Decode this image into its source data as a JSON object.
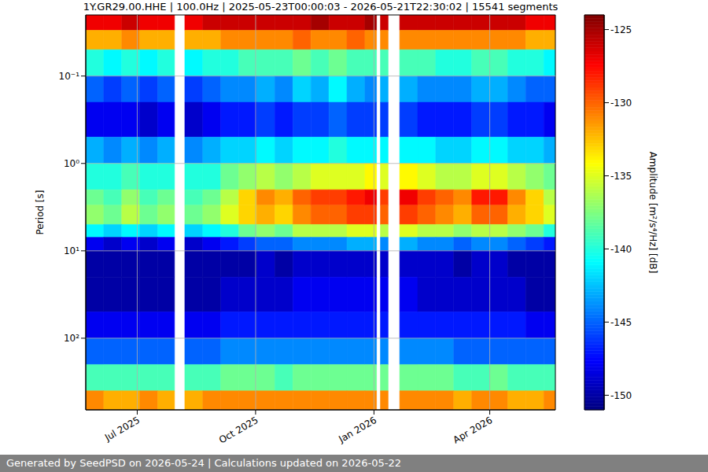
{
  "chart_data": {
    "type": "heatmap",
    "title": "1Y.GR29.00.HHE | 100.0Hz | 2025-05-23T00:00:03 - 2026-05-21T22:30:02 | 15541 segments",
    "y_label": "Period [s]",
    "footer": "Generated by SeedPSD on 2026-05-24 | Calculations updated on 2026-05-22",
    "log": "y",
    "grid": true,
    "xlim": [
      "2025-05-22",
      "2026-05-22"
    ],
    "xticks": [
      {
        "value": "2025-07-01",
        "label": "Jul 2025"
      },
      {
        "value": "2025-10-01",
        "label": "Oct 2025"
      },
      {
        "value": "2026-01-01",
        "label": "Jan 2026"
      },
      {
        "value": "2026-04-01",
        "label": "Apr 2026"
      }
    ],
    "ylim": [
      0.02,
      660
    ],
    "yticks": [
      {
        "value": 0.1,
        "label": "10⁻¹"
      },
      {
        "value": 1,
        "label": "10⁰"
      },
      {
        "value": 10,
        "label": "10¹"
      },
      {
        "value": 100,
        "label": "10²"
      }
    ],
    "colorbar": {
      "label": "Amplitude [m²/s⁴/Hz] [dB]",
      "range": [
        -151,
        -124
      ],
      "ticks": [
        -150,
        -145,
        -140,
        -135,
        -130,
        -125
      ]
    },
    "x_edges": [
      "2025-05-22",
      "2025-06-05",
      "2025-06-19",
      "2025-07-03",
      "2025-07-17",
      "2025-07-30",
      "2025-08-07",
      "2025-08-21",
      "2025-09-04",
      "2025-09-18",
      "2025-10-02",
      "2025-10-16",
      "2025-10-30",
      "2025-11-13",
      "2025-11-27",
      "2025-12-11",
      "2025-12-25",
      "2026-01-03",
      "2026-01-06",
      "2026-01-12",
      "2026-01-21",
      "2026-02-04",
      "2026-02-18",
      "2026-03-04",
      "2026-03-18",
      "2026-04-01",
      "2026-04-15",
      "2026-04-29",
      "2026-05-13",
      "2026-05-22"
    ],
    "y_edges": [
      0.02,
      0.03,
      0.05,
      0.1,
      0.2,
      0.5,
      1,
      2,
      3,
      5,
      7,
      10,
      20,
      50,
      100,
      200,
      400,
      660
    ],
    "z": [
      [
        -127,
        -127,
        -126,
        -127,
        -127,
        null,
        -127,
        -126,
        -126,
        -126,
        -126,
        -126,
        -126,
        -125,
        -126,
        -126,
        -125,
        null,
        -126,
        null,
        -126,
        -126,
        -126,
        -126,
        -126,
        -126,
        -126,
        -127,
        -127
      ],
      [
        -132,
        -132,
        -131,
        -132,
        -132,
        null,
        -132,
        -132,
        -131,
        -131,
        -131,
        -131,
        -130,
        -131,
        -131,
        -130,
        -131,
        null,
        -131,
        null,
        -131,
        -131,
        -131,
        -131,
        -131,
        -131,
        -131,
        -132,
        -132
      ],
      [
        -140,
        -141,
        -140,
        -141,
        -140,
        null,
        -141,
        -140,
        -140,
        -139,
        -139,
        -139,
        -138,
        -139,
        -138,
        -139,
        -139,
        null,
        -139,
        null,
        -139,
        -139,
        -140,
        -140,
        -139,
        -139,
        -140,
        -140,
        -141
      ],
      [
        -145,
        -146,
        -145,
        -146,
        -145,
        null,
        -146,
        -145,
        -144,
        -144,
        -143,
        -144,
        -142,
        -143,
        -141,
        -143,
        -144,
        null,
        -143,
        null,
        -143,
        -144,
        -144,
        -144,
        -143,
        -143,
        -144,
        -145,
        -145
      ],
      [
        -148,
        -148,
        -148,
        -149,
        -148,
        null,
        -149,
        -148,
        -147,
        -147,
        -146,
        -147,
        -146,
        -146,
        -145,
        -146,
        -146,
        null,
        -146,
        null,
        -146,
        -147,
        -147,
        -147,
        -146,
        -146,
        -147,
        -147,
        -148
      ],
      [
        -143,
        -144,
        -143,
        -144,
        -143,
        null,
        -144,
        -143,
        -142,
        -142,
        -141,
        -142,
        -141,
        -141,
        -140,
        -141,
        -141,
        null,
        -141,
        null,
        -141,
        -141,
        -142,
        -142,
        -141,
        -141,
        -142,
        -142,
        -143
      ],
      [
        -140,
        -140,
        -139,
        -140,
        -140,
        null,
        -140,
        -140,
        -138,
        -137,
        -136,
        -137,
        -136,
        -135,
        -135,
        -135,
        -134,
        null,
        -135,
        null,
        -134,
        -135,
        -136,
        -136,
        -135,
        -135,
        -136,
        -137,
        -138
      ],
      [
        -138,
        -139,
        -137,
        -139,
        -138,
        null,
        -139,
        -138,
        -136,
        -133,
        -131,
        -132,
        -130,
        -129,
        -129,
        -128,
        -127,
        null,
        -129,
        null,
        -127,
        -129,
        -130,
        -131,
        -128,
        -128,
        -131,
        -133,
        -136
      ],
      [
        -137,
        -138,
        -136,
        -138,
        -137,
        null,
        -138,
        -137,
        -135,
        -133,
        -132,
        -133,
        -131,
        -130,
        -130,
        -129,
        -129,
        null,
        -130,
        null,
        -129,
        -130,
        -131,
        -132,
        -130,
        -130,
        -132,
        -133,
        -135
      ],
      [
        -141,
        -142,
        -141,
        -142,
        -141,
        null,
        -142,
        -141,
        -140,
        -138,
        -137,
        -138,
        -136,
        -136,
        -136,
        -135,
        -135,
        null,
        -136,
        null,
        -135,
        -136,
        -136,
        -137,
        -136,
        -136,
        -137,
        -138,
        -140
      ],
      [
        -148,
        -149,
        -148,
        -149,
        -148,
        null,
        -149,
        -148,
        -147,
        -146,
        -145,
        -145,
        -144,
        -144,
        -144,
        -143,
        -143,
        null,
        -144,
        null,
        -143,
        -144,
        -144,
        -145,
        -144,
        -144,
        -145,
        -146,
        -147
      ],
      [
        -150,
        -150,
        -150,
        -150,
        -150,
        null,
        -150,
        -150,
        -150,
        -150,
        -149,
        -150,
        -149,
        -149,
        -149,
        -149,
        -149,
        null,
        -149,
        null,
        -149,
        -149,
        -149,
        -150,
        -149,
        -149,
        -150,
        -150,
        -150
      ],
      [
        -150,
        -150,
        -150,
        -150,
        -150,
        null,
        -150,
        -150,
        -149,
        -149,
        -149,
        -149,
        -148,
        -148,
        -148,
        -148,
        -148,
        null,
        -148,
        null,
        -148,
        -149,
        -149,
        -149,
        -149,
        -149,
        -149,
        -150,
        -150
      ],
      [
        -148,
        -148,
        -148,
        -148,
        -148,
        null,
        -148,
        -148,
        -147,
        -147,
        -147,
        -147,
        -147,
        -147,
        -147,
        -147,
        -147,
        null,
        -147,
        null,
        -147,
        -147,
        -147,
        -147,
        -147,
        -147,
        -147,
        -148,
        -148
      ],
      [
        -145,
        -145,
        -145,
        -145,
        -145,
        null,
        -145,
        -145,
        -144,
        -144,
        -144,
        -144,
        -144,
        -144,
        -144,
        -144,
        -144,
        null,
        -144,
        null,
        -144,
        -144,
        -144,
        -145,
        -145,
        -145,
        -145,
        -145,
        -145
      ],
      [
        -139,
        -139,
        -139,
        -139,
        -139,
        null,
        -139,
        -139,
        -138,
        -138,
        -138,
        -139,
        -138,
        -138,
        -138,
        -138,
        -138,
        null,
        -138,
        null,
        -138,
        -138,
        -138,
        -139,
        -139,
        -138,
        -139,
        -139,
        -139
      ],
      [
        -131,
        -132,
        -132,
        -131,
        -132,
        null,
        -132,
        -131,
        -131,
        -131,
        -131,
        -131,
        -131,
        -131,
        -131,
        -131,
        -131,
        null,
        -131,
        null,
        -131,
        -131,
        -131,
        -132,
        -131,
        -131,
        -132,
        -132,
        -131
      ]
    ]
  }
}
